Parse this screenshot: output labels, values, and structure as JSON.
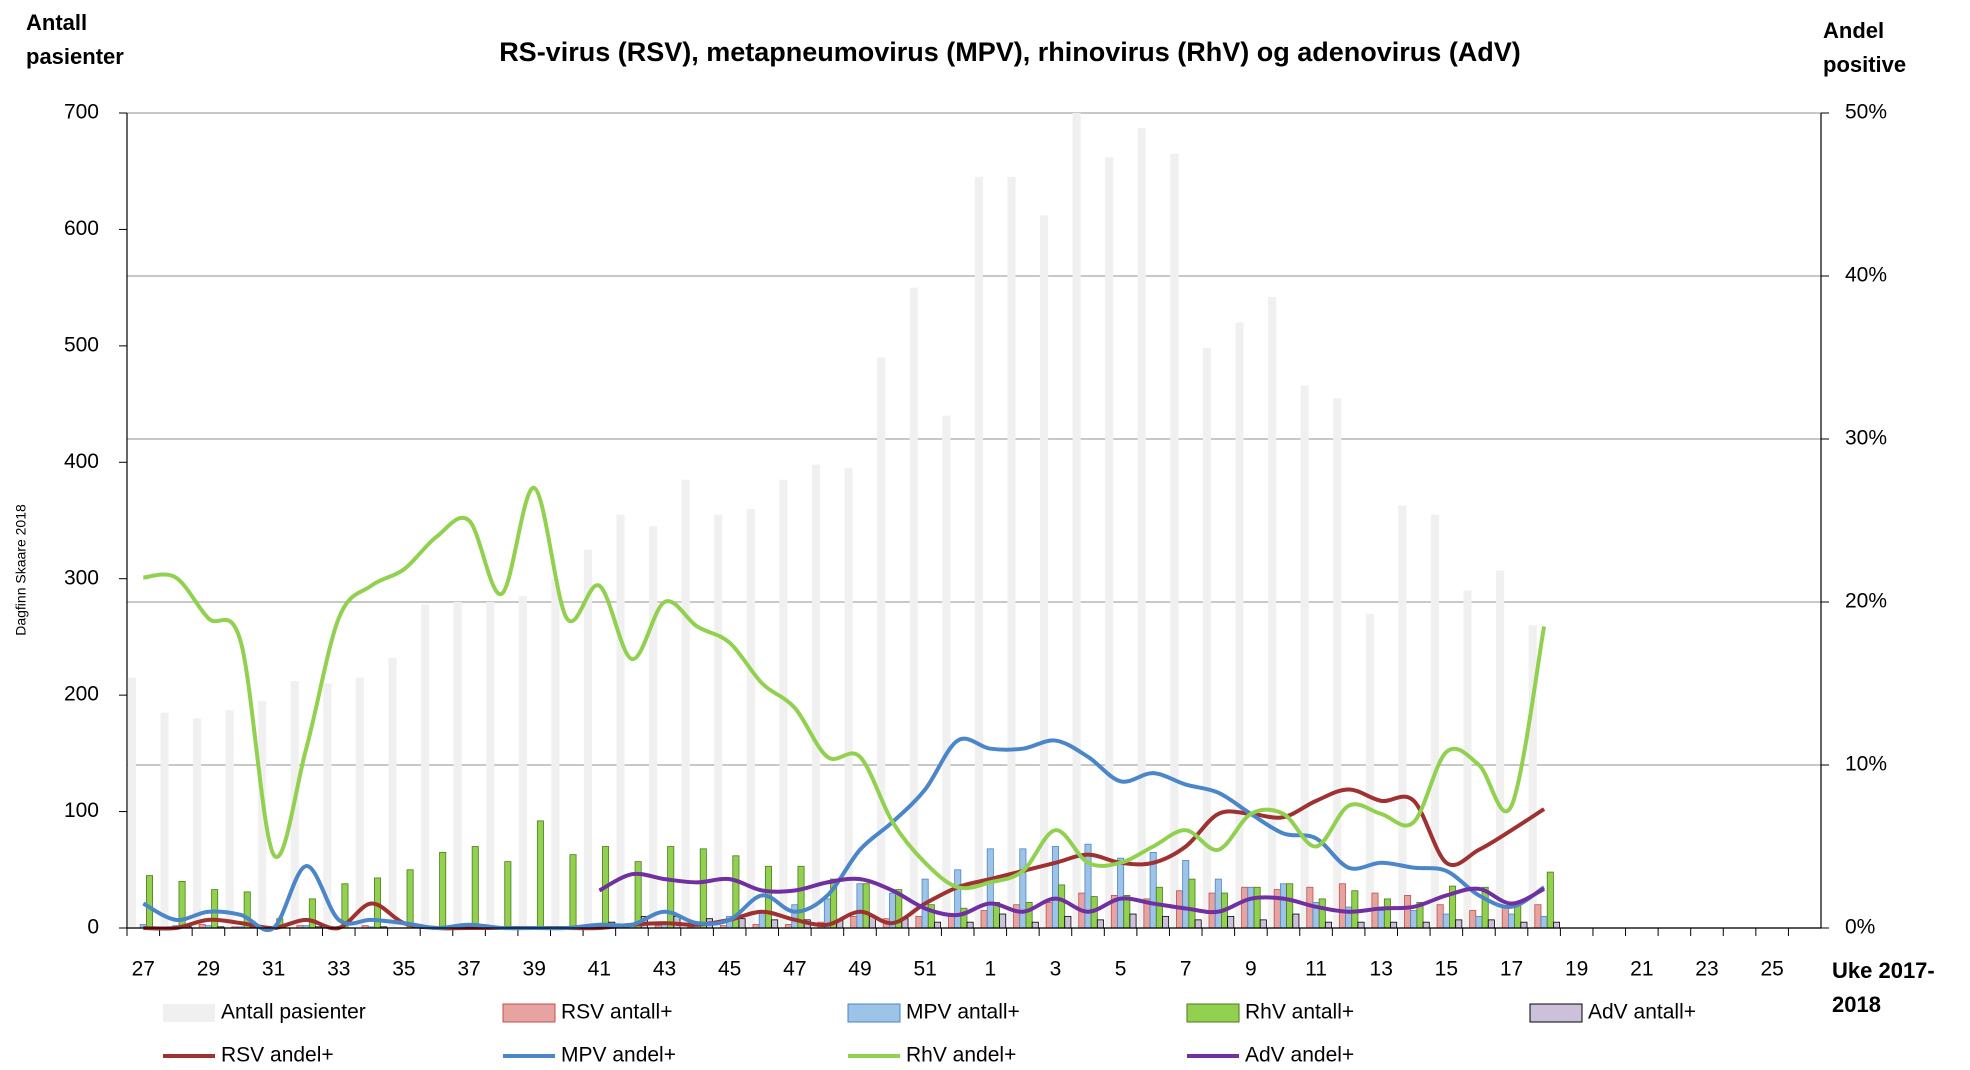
{
  "chart_data": {
    "type": "combo",
    "title": "RS-virus (RSV), metapneumovirus (MPV), rhinovirus (RhV) og adenovirus (AdV)",
    "y_label": "Antall pasienter",
    "y2_label": "Andel positive",
    "x_label": "Uke 2017-2018",
    "credit": "Dagfinn Skaare 2018",
    "categories": [
      "27",
      null,
      "29",
      null,
      "31",
      null,
      "33",
      null,
      "35",
      null,
      "37",
      null,
      "39",
      null,
      "41",
      null,
      "43",
      null,
      "45",
      null,
      "47",
      null,
      "49",
      null,
      "51",
      null,
      "1",
      null,
      "3",
      null,
      "5",
      null,
      "7",
      null,
      "9",
      null,
      "11",
      null,
      "13",
      null,
      "15",
      null,
      "17",
      null,
      "19",
      null,
      "21",
      null,
      "23",
      null,
      "25",
      null
    ],
    "ylim": [
      0,
      700
    ],
    "yticks": [
      0,
      100,
      200,
      300,
      400,
      500,
      600,
      700
    ],
    "y2lim": [
      0,
      50
    ],
    "y2ticks": [
      {
        "value": 0,
        "label": "0%"
      },
      {
        "value": 10,
        "label": "10%"
      },
      {
        "value": 20,
        "label": "20%"
      },
      {
        "value": 30,
        "label": "30%"
      },
      {
        "value": 40,
        "label": "40%"
      },
      {
        "value": 50,
        "label": "50%"
      }
    ],
    "grid": true,
    "series": [
      {
        "name": "Antall pasienter",
        "type": "bar",
        "color": "#f0f0f0",
        "values": [
          215,
          185,
          180,
          187,
          195,
          212,
          210,
          215,
          232,
          278,
          280,
          280,
          285,
          300,
          325,
          355,
          345,
          385,
          355,
          360,
          385,
          398,
          395,
          490,
          550,
          440,
          645,
          645,
          612,
          700,
          662,
          687,
          665,
          498,
          520,
          542,
          466,
          455,
          270,
          363,
          355,
          290,
          307,
          260,
          null,
          null,
          null,
          null,
          null,
          null,
          null,
          null
        ]
      },
      {
        "name": "RSV antall+",
        "type": "bar",
        "color": "#e6a3a0",
        "values": [
          0,
          1,
          3,
          1,
          0,
          2,
          0,
          2,
          0,
          0,
          0,
          0,
          0,
          0,
          0,
          1,
          2,
          1,
          2,
          3,
          3,
          5,
          10,
          8,
          10,
          12,
          15,
          20,
          22,
          30,
          28,
          25,
          32,
          30,
          35,
          33,
          35,
          38,
          30,
          28,
          20,
          15,
          18,
          20,
          null,
          null,
          null,
          null,
          null,
          null,
          null,
          null
        ]
      },
      {
        "name": "MPV antall+",
        "type": "bar",
        "color": "#9dc3e6",
        "values": [
          3,
          2,
          2,
          1,
          0,
          2,
          1,
          1,
          0,
          0,
          0,
          0,
          0,
          0,
          1,
          2,
          5,
          3,
          10,
          15,
          20,
          25,
          38,
          30,
          42,
          50,
          68,
          68,
          70,
          72,
          60,
          65,
          58,
          42,
          35,
          38,
          22,
          18,
          15,
          15,
          12,
          10,
          12,
          10,
          null,
          null,
          null,
          null,
          null,
          null,
          null,
          null
        ]
      },
      {
        "name": "RhV antall+",
        "type": "bar",
        "color": "#92d050",
        "values": [
          45,
          40,
          33,
          31,
          8,
          25,
          38,
          43,
          50,
          65,
          70,
          57,
          92,
          63,
          70,
          57,
          70,
          68,
          62,
          53,
          53,
          42,
          38,
          33,
          20,
          17,
          22,
          22,
          37,
          27,
          28,
          35,
          42,
          30,
          35,
          38,
          25,
          32,
          25,
          22,
          36,
          35,
          22,
          48,
          null,
          null,
          null,
          null,
          null,
          null,
          null,
          null
        ]
      },
      {
        "name": "AdV antall+",
        "type": "bar",
        "color": "#ccc0da",
        "values": [
          1,
          1,
          1,
          1,
          0,
          1,
          0,
          1,
          0,
          0,
          1,
          1,
          1,
          1,
          5,
          10,
          10,
          8,
          8,
          7,
          7,
          7,
          10,
          8,
          5,
          5,
          12,
          5,
          10,
          7,
          12,
          10,
          7,
          10,
          7,
          12,
          5,
          5,
          5,
          5,
          7,
          7,
          5,
          5,
          null,
          null,
          null,
          null,
          null,
          null,
          null,
          null
        ]
      },
      {
        "name": "RSV andel+",
        "type": "line",
        "axis": "y2",
        "color": "#9e3131",
        "values": [
          0,
          0,
          0.5,
          0.3,
          0,
          0.5,
          0,
          1.5,
          0.3,
          0,
          0,
          0,
          0,
          0,
          0,
          0.2,
          0.3,
          0.2,
          0.5,
          1,
          0.5,
          0.2,
          1,
          0.3,
          1.5,
          2.5,
          3,
          3.5,
          4,
          4.5,
          4,
          4,
          5,
          7,
          7,
          6.8,
          7.8,
          8.5,
          7.8,
          7.8,
          4,
          4.8,
          6,
          7.3,
          null,
          null,
          null,
          null,
          null,
          null,
          null,
          null
        ]
      },
      {
        "name": "MPV andel+",
        "type": "line",
        "axis": "y2",
        "color": "#4a86c8",
        "values": [
          1.5,
          0.5,
          1,
          0.8,
          0,
          3.8,
          0.5,
          0.5,
          0.3,
          0,
          0.2,
          0,
          0,
          0,
          0.2,
          0.2,
          1,
          0.3,
          0.5,
          2,
          1,
          2,
          4.8,
          6.5,
          8.5,
          11.5,
          11,
          11,
          11.5,
          10.5,
          9,
          9.5,
          8.8,
          8.3,
          7,
          5.8,
          5.5,
          3.7,
          4,
          3.7,
          3.5,
          2,
          1.3,
          2.5,
          null,
          null,
          null,
          null,
          null,
          null,
          null,
          null
        ]
      },
      {
        "name": "RhV andel+",
        "type": "line",
        "axis": "y2",
        "color": "#92d050",
        "values": [
          21.5,
          21.5,
          19,
          17.5,
          4.5,
          11,
          19,
          21,
          22,
          24,
          25,
          20.5,
          27,
          19,
          21,
          16.5,
          20,
          18.5,
          17.5,
          15,
          13.5,
          10.5,
          10.5,
          6.5,
          4,
          2.5,
          2.8,
          3.5,
          6,
          4,
          4,
          5,
          6,
          4.8,
          7,
          7,
          5,
          7.5,
          7,
          6.5,
          10.8,
          10,
          7.5,
          18.5,
          null,
          null,
          null,
          null,
          null,
          null,
          null,
          null
        ]
      },
      {
        "name": "AdV andel+",
        "type": "line",
        "axis": "y2",
        "color": "#7030a0",
        "values": [
          null,
          null,
          null,
          null,
          null,
          null,
          null,
          null,
          null,
          null,
          null,
          null,
          null,
          null,
          2.3,
          3.3,
          3,
          2.8,
          3,
          2.3,
          2.3,
          2.8,
          3,
          2.3,
          1.2,
          0.8,
          1.5,
          1,
          1.8,
          1,
          1.8,
          1.5,
          1.2,
          1,
          1.8,
          1.8,
          1.3,
          1,
          1.2,
          1.3,
          2,
          2.4,
          1.5,
          2.4,
          null,
          null,
          null,
          null,
          null,
          null,
          null,
          null
        ]
      }
    ]
  }
}
